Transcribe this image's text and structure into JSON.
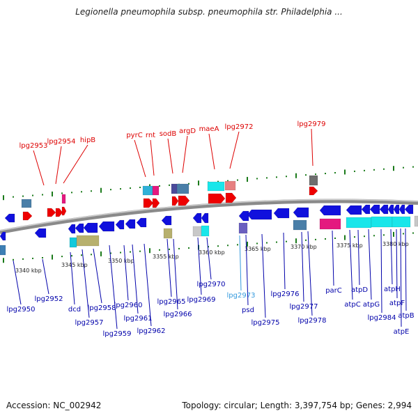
{
  "title": "Legionella pneumophila subsp. pneumophila str. Philadelphia ...",
  "footer": {
    "accession": "Accession: NC_002942",
    "stats": "Topology: circular; Length: 3,397,754 bp; Genes: 2,994"
  },
  "colors": {
    "upper_label": "#dd0000",
    "lower_label": "#0000aa",
    "highlight_label": "#3399dd",
    "backbone": "#8a8a8a",
    "tick": "#1a7a1a"
  },
  "scale_labels": [
    {
      "text": "3340 kbp"
    },
    {
      "text": "3345 kbp"
    },
    {
      "text": "3350 kbp"
    },
    {
      "text": "3355 kbp"
    },
    {
      "text": "3360 kbp"
    },
    {
      "text": "3365 kbp"
    },
    {
      "text": "3370 kbp"
    },
    {
      "text": "3375 kbp"
    },
    {
      "text": "3380 kbp"
    }
  ],
  "upper_labels": [
    {
      "text": "lpg2953"
    },
    {
      "text": "lpg2954"
    },
    {
      "text": "hipB"
    },
    {
      "text": "pyrC"
    },
    {
      "text": "rnt"
    },
    {
      "text": "sodB"
    },
    {
      "text": "argD"
    },
    {
      "text": "maeA"
    },
    {
      "text": "lpg2972"
    },
    {
      "text": "lpg2979"
    }
  ],
  "lower_labels": [
    {
      "text": "lpg2950"
    },
    {
      "text": "lpg2952"
    },
    {
      "text": "dcd"
    },
    {
      "text": "lpg2957"
    },
    {
      "text": "lpg2958"
    },
    {
      "text": "lpg2959"
    },
    {
      "text": "lpg2960"
    },
    {
      "text": "lpg2961"
    },
    {
      "text": "lpg2962"
    },
    {
      "text": "lpg2965"
    },
    {
      "text": "lpg2966"
    },
    {
      "text": "lpg2969"
    },
    {
      "text": "lpg2970"
    },
    {
      "text": "lpg2973",
      "highlight": true
    },
    {
      "text": "psd"
    },
    {
      "text": "lpg2975"
    },
    {
      "text": "lpg2976"
    },
    {
      "text": "lpg2977"
    },
    {
      "text": "lpg2978"
    },
    {
      "text": "parC"
    },
    {
      "text": "atpC"
    },
    {
      "text": "atpD"
    },
    {
      "text": "atpG"
    },
    {
      "text": "lpg2984"
    },
    {
      "text": "atpH"
    },
    {
      "text": "atpF"
    },
    {
      "text": "atpE"
    },
    {
      "text": "atpB"
    }
  ]
}
